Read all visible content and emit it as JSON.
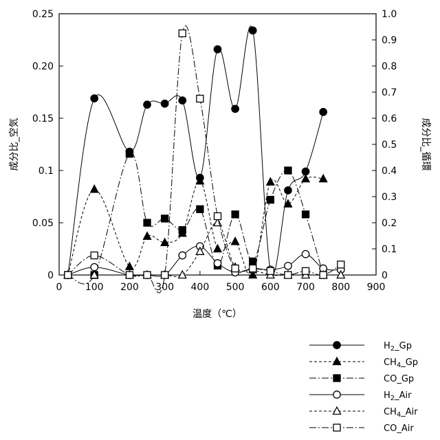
{
  "chart_data": {
    "type": "line",
    "title": "",
    "xlabel": "温度（℃）",
    "ylabel_left": "成分比_空気",
    "ylabel_right": "成分比_循環",
    "xlim": [
      0,
      900
    ],
    "xticks": [
      "0",
      "100",
      "200",
      "300",
      "400",
      "500",
      "600",
      "700",
      "800",
      "900"
    ],
    "ylim_left": [
      0,
      0.25
    ],
    "yticks_left": [
      "0",
      "0.05",
      "0.1",
      "0.15",
      "0.20",
      "0.25"
    ],
    "ylim_right": [
      0,
      1.0
    ],
    "yticks_right": [
      "0",
      "0.1",
      "0.2",
      "0.3",
      "0.4",
      "0.5",
      "0.6",
      "0.7",
      "0.8",
      "0.9",
      "1.0"
    ],
    "grid": false,
    "legend_position": "bottom-right",
    "series": [
      {
        "name": "H2_Gp",
        "axis": "left",
        "marker": "filled-circle",
        "dash": "solid",
        "points": [
          [
            25,
            0
          ],
          [
            100,
            0.169
          ],
          [
            200,
            0.118
          ],
          [
            250,
            0.163
          ],
          [
            300,
            0.164
          ],
          [
            350,
            0.167
          ],
          [
            400,
            0.093
          ],
          [
            450,
            0.216
          ],
          [
            500,
            0.159
          ],
          [
            550,
            0.234
          ],
          [
            600,
            0.005
          ],
          [
            650,
            0.081
          ],
          [
            700,
            0.099
          ],
          [
            750,
            0.156
          ]
        ]
      },
      {
        "name": "CH4_Gp",
        "axis": "left",
        "marker": "filled-triangle",
        "dash": "dashed",
        "points": [
          [
            25,
            0
          ],
          [
            100,
            0.082
          ],
          [
            200,
            0.008
          ],
          [
            250,
            0.037
          ],
          [
            300,
            0.031
          ],
          [
            350,
            0.04
          ],
          [
            400,
            0.09
          ],
          [
            450,
            0.025
          ],
          [
            500,
            0.032
          ],
          [
            550,
            0
          ],
          [
            600,
            0.089
          ],
          [
            650,
            0.068
          ],
          [
            700,
            0.092
          ],
          [
            750,
            0.092
          ]
        ]
      },
      {
        "name": "CO_Gp",
        "axis": "left",
        "marker": "filled-square",
        "dash": "dashdot",
        "points": [
          [
            25,
            0
          ],
          [
            100,
            0
          ],
          [
            200,
            0.116
          ],
          [
            250,
            0.05
          ],
          [
            300,
            0.054
          ],
          [
            350,
            0.043
          ],
          [
            400,
            0.063
          ],
          [
            450,
            0.009
          ],
          [
            500,
            0.058
          ],
          [
            550,
            0.013
          ],
          [
            600,
            0.072
          ],
          [
            650,
            0.1
          ],
          [
            700,
            0.058
          ],
          [
            750,
            0
          ]
        ]
      },
      {
        "name": "H2_Air",
        "axis": "right",
        "marker": "open-circle",
        "dash": "solid",
        "points": [
          [
            25,
            0
          ],
          [
            100,
            0.03
          ],
          [
            200,
            0
          ],
          [
            250,
            0
          ],
          [
            300,
            0
          ],
          [
            350,
            0.075
          ],
          [
            400,
            0.11
          ],
          [
            450,
            0.045
          ],
          [
            500,
            0.01
          ],
          [
            550,
            0.025
          ],
          [
            600,
            0.02
          ],
          [
            650,
            0.035
          ],
          [
            700,
            0.08
          ],
          [
            750,
            0.025
          ],
          [
            800,
            0.02
          ]
        ]
      },
      {
        "name": "CH4_Air",
        "axis": "right",
        "marker": "open-triangle",
        "dash": "dashed",
        "points": [
          [
            25,
            0
          ],
          [
            100,
            0
          ],
          [
            200,
            0
          ],
          [
            250,
            0
          ],
          [
            300,
            0
          ],
          [
            350,
            0
          ],
          [
            400,
            0.09
          ],
          [
            450,
            0.2
          ],
          [
            500,
            0.03
          ],
          [
            550,
            0.02
          ],
          [
            600,
            0
          ],
          [
            650,
            0
          ],
          [
            700,
            0
          ],
          [
            750,
            0
          ],
          [
            800,
            0
          ]
        ]
      },
      {
        "name": "CO_Air",
        "axis": "right",
        "marker": "open-square",
        "dash": "dashdot",
        "points": [
          [
            25,
            0
          ],
          [
            100,
            0.075
          ],
          [
            200,
            0
          ],
          [
            250,
            0
          ],
          [
            300,
            0
          ],
          [
            350,
            0.925
          ],
          [
            400,
            0.675
          ],
          [
            450,
            0.225
          ],
          [
            500,
            0.025
          ],
          [
            550,
            0.025
          ],
          [
            600,
            0.015
          ],
          [
            650,
            0
          ],
          [
            700,
            0.015
          ],
          [
            750,
            0
          ],
          [
            800,
            0.04
          ]
        ]
      }
    ],
    "legend": [
      {
        "label": "H2_Gp",
        "sub": "2",
        "base": "H",
        "rest": "_Gp",
        "marker": "filled-circle",
        "dash": "solid"
      },
      {
        "label": "CH4_Gp",
        "sub": "4",
        "base": "CH",
        "rest": "_Gp",
        "marker": "filled-triangle",
        "dash": "dashed"
      },
      {
        "label": "CO_Gp",
        "sub": "",
        "base": "CO",
        "rest": "_Gp",
        "marker": "filled-square",
        "dash": "dashdot"
      },
      {
        "label": "H2_Air",
        "sub": "2",
        "base": "H",
        "rest": "_Air",
        "marker": "open-circle",
        "dash": "solid"
      },
      {
        "label": "CH4_Air",
        "sub": "4",
        "base": "CH",
        "rest": "_Air",
        "marker": "open-triangle",
        "dash": "dashed"
      },
      {
        "label": "CO_Air",
        "sub": "",
        "base": "CO",
        "rest": "_Air",
        "marker": "open-square",
        "dash": "dashdot"
      }
    ],
    "colors": {
      "line": "#000000",
      "background": "#ffffff"
    }
  }
}
